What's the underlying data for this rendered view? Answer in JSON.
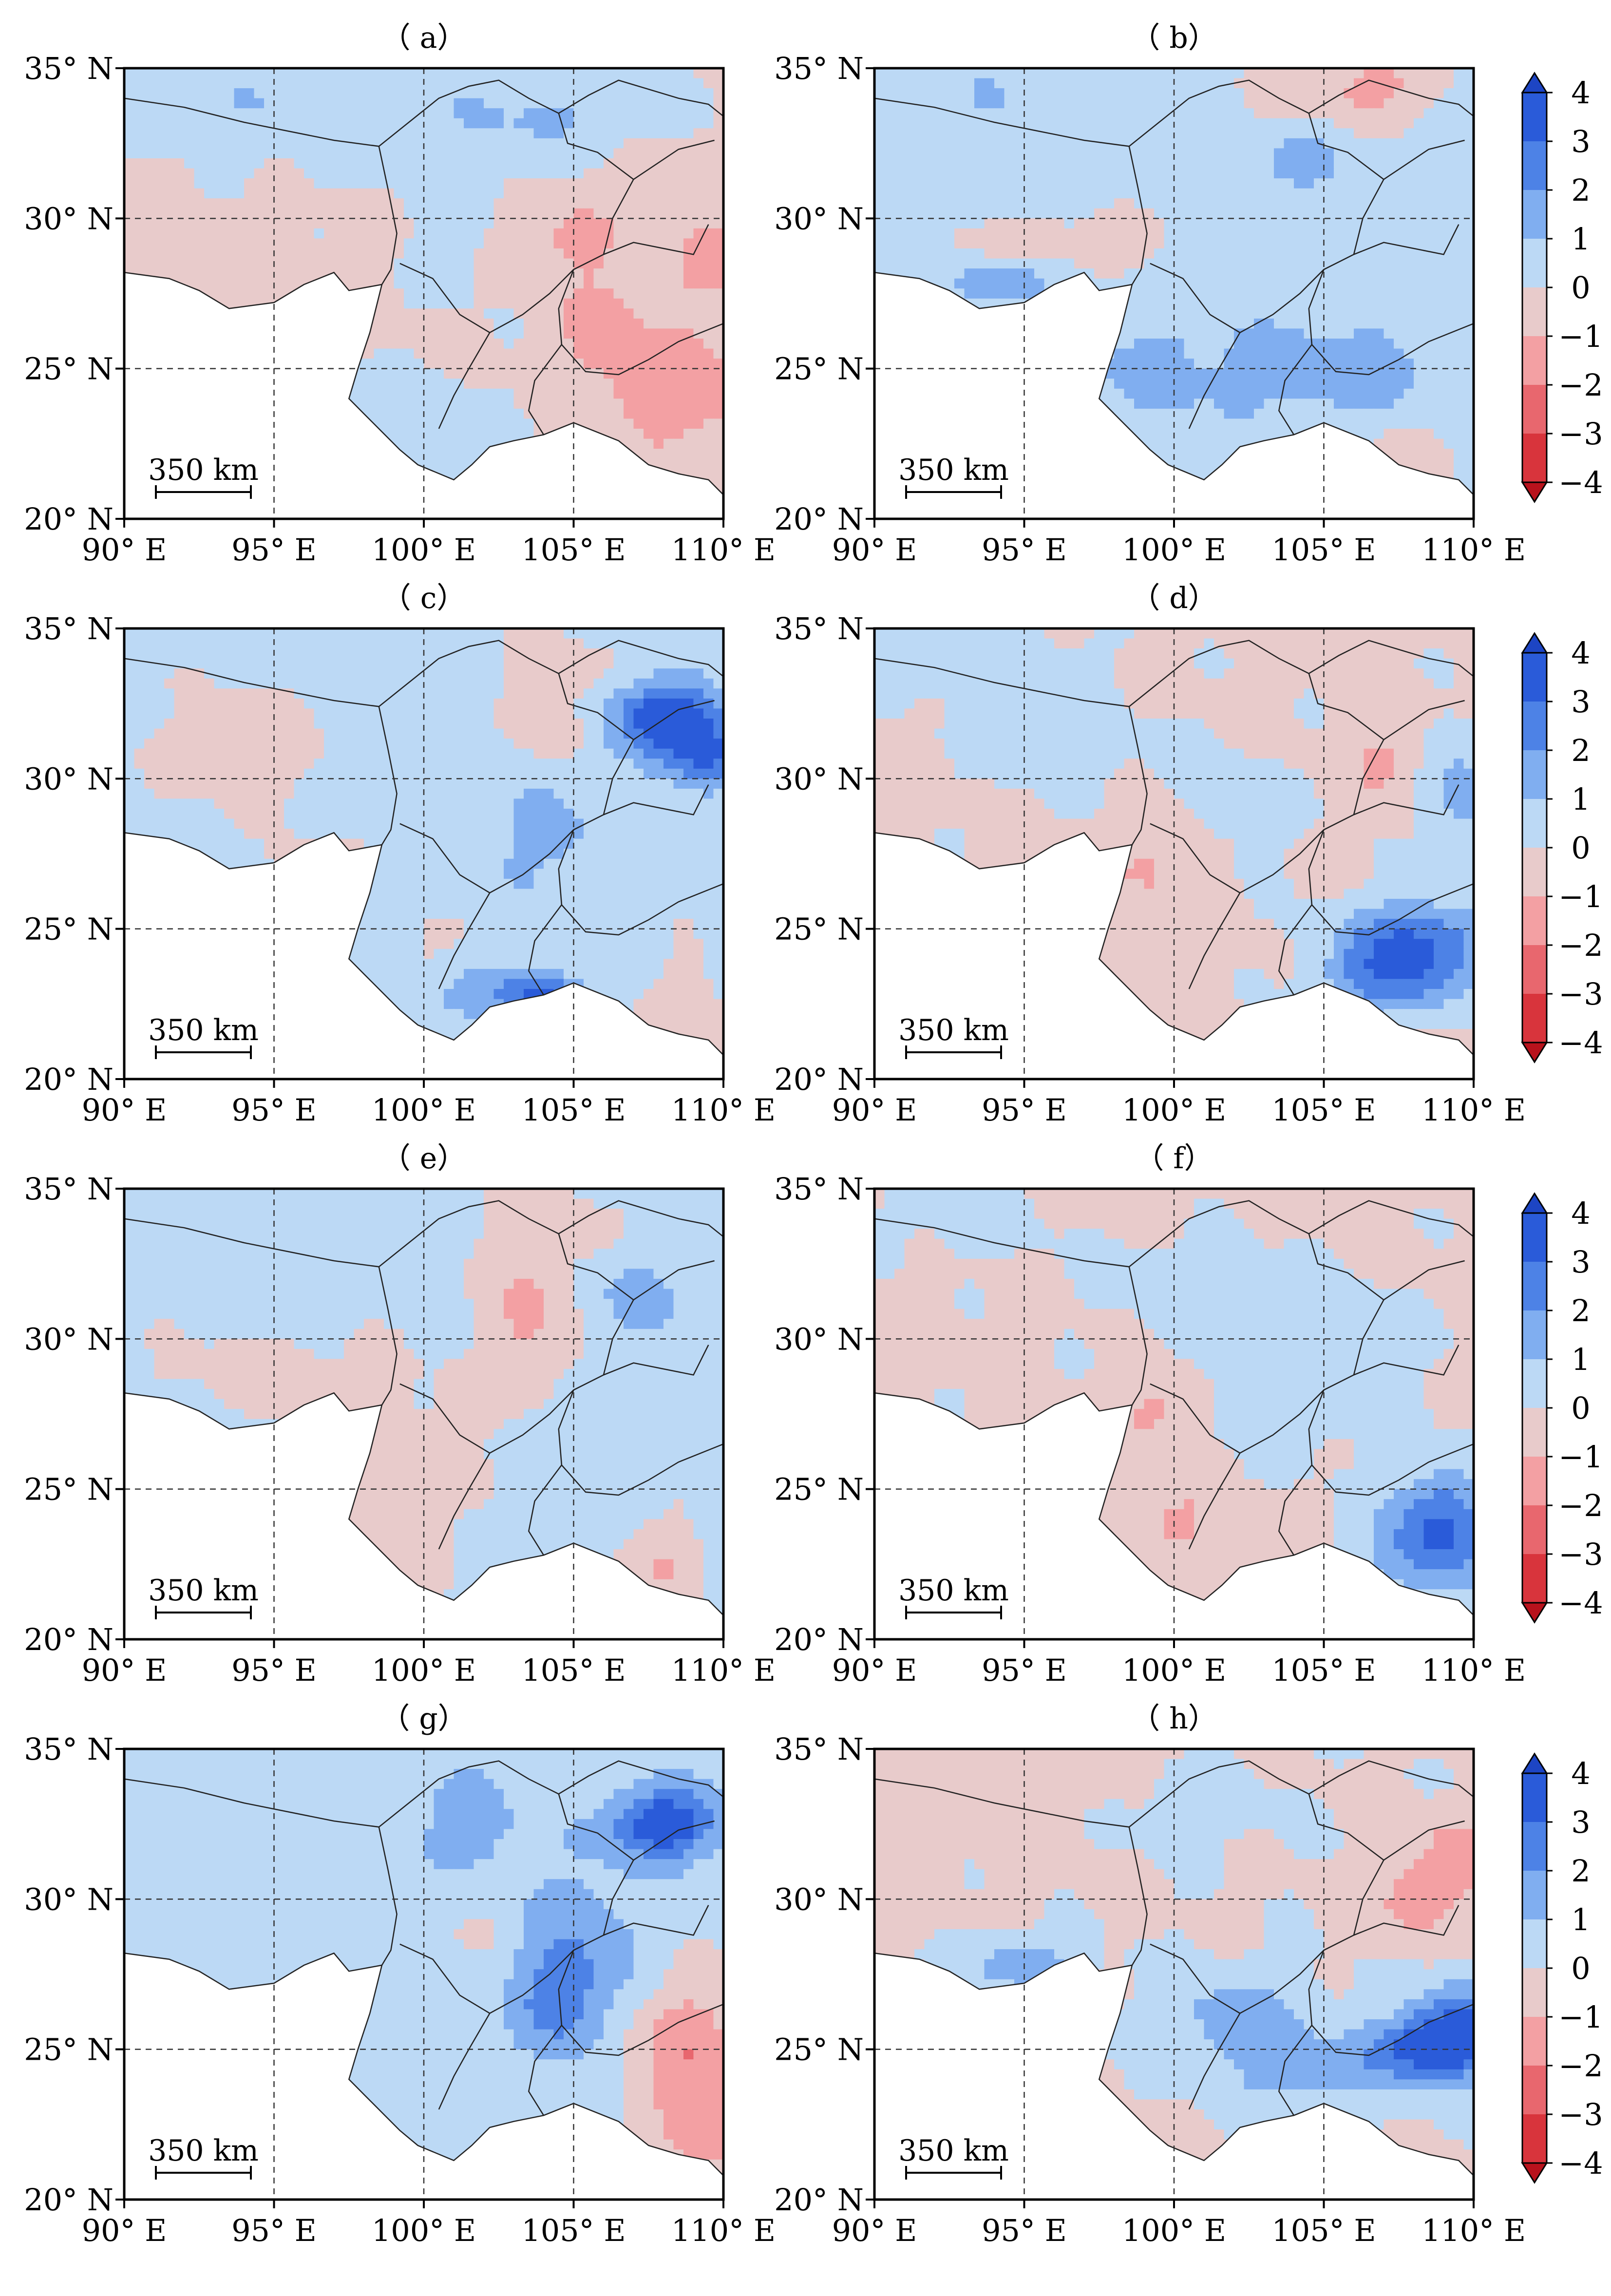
{
  "figure": {
    "panels": [
      {
        "label": "（ a）",
        "pattern": "a"
      },
      {
        "label": "（ b）",
        "pattern": "b"
      },
      {
        "label": "（ c）",
        "pattern": "c"
      },
      {
        "label": "（ d）",
        "pattern": "d"
      },
      {
        "label": "（ e）",
        "pattern": "e"
      },
      {
        "label": "（ f）",
        "pattern": "f"
      },
      {
        "label": "（ g）",
        "pattern": "g"
      },
      {
        "label": "（ h）",
        "pattern": "h"
      }
    ],
    "lon_ticks": [
      "90° E",
      "95° E",
      "100° E",
      "105° E",
      "110° E"
    ],
    "lat_ticks": [
      "35° N",
      "30° N",
      "25° N",
      "20° N"
    ],
    "scale_bar_label": "350 km",
    "colorbar": {
      "labels": [
        "4",
        "3",
        "2",
        "1",
        "0",
        "−1",
        "−2",
        "−3",
        "−4"
      ],
      "colors": [
        "#2a5bd9",
        "#4d82e6",
        "#80aef0",
        "#bcd9f5",
        "#e8cbcb",
        "#f3a0a3",
        "#e8676e",
        "#d8343c"
      ],
      "over_color": "#1d45c4",
      "under_color": "#b8121c"
    }
  },
  "chart_data": {
    "type": "heatmap",
    "lon_range": [
      90,
      110
    ],
    "lat_range": [
      20,
      35
    ],
    "value_range": [
      -4,
      4
    ],
    "panel_labels": [
      "a",
      "b",
      "c",
      "d",
      "e",
      "f",
      "g",
      "h"
    ]
  }
}
